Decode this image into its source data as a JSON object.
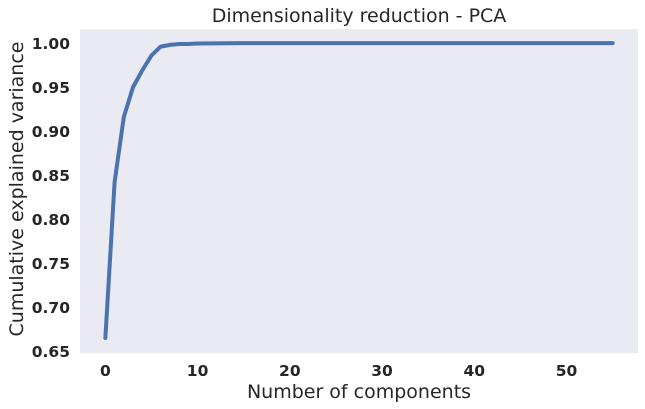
{
  "chart_data": {
    "type": "line",
    "title": "Dimensionality reduction - PCA",
    "xlabel": "Number of components",
    "ylabel": "Cumulative explained variance",
    "xlim": [
      -2.75,
      57.75
    ],
    "ylim": [
      0.648,
      1.016
    ],
    "xticks": [
      0,
      10,
      20,
      30,
      40,
      50
    ],
    "yticks": [
      0.65,
      0.7,
      0.75,
      0.8,
      0.85,
      0.9,
      0.95,
      1.0
    ],
    "xtick_labels": [
      "0",
      "10",
      "20",
      "30",
      "40",
      "50"
    ],
    "ytick_labels": [
      "0.65",
      "0.70",
      "0.75",
      "0.80",
      "0.85",
      "0.90",
      "0.95",
      "1.00"
    ],
    "grid": false,
    "background": "#eaeaf2",
    "line_color": "#4c72b0",
    "series": [
      {
        "x": [
          0,
          1,
          2,
          3,
          4,
          5,
          6,
          7,
          8,
          9,
          10,
          15,
          20,
          25,
          30,
          35,
          40,
          45,
          50,
          55
        ],
        "values": [
          0.665,
          0.842,
          0.916,
          0.95,
          0.969,
          0.986,
          0.996,
          0.998,
          0.999,
          0.999,
          0.9995,
          1.0,
          1.0,
          1.0,
          1.0,
          1.0,
          1.0,
          1.0,
          1.0,
          1.0
        ]
      }
    ]
  }
}
